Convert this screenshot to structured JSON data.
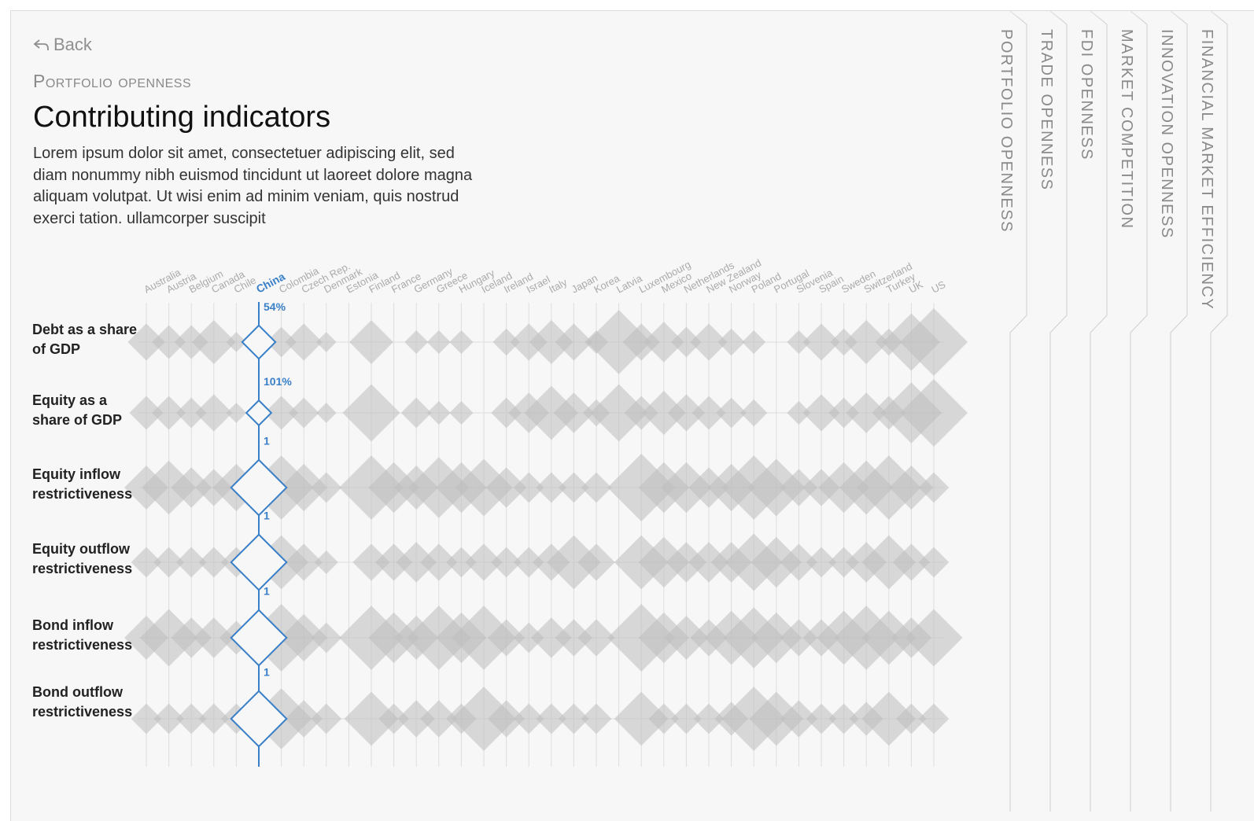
{
  "back_label": "Back",
  "section_label": "Portfolio openness",
  "page_title": "Contributing indicators",
  "page_description": "Lorem ipsum dolor sit amet, consectetuer adipiscing elit, sed diam nonummy nibh euismod tincidunt ut laoreet dolore magna aliquam volutpat. Ut wisi enim ad minim veniam, quis nostrud exerci tation. ullamcorper suscipit",
  "tabs": [
    {
      "label": "Portfolio openness"
    },
    {
      "label": "Trade openness"
    },
    {
      "label": "FDI openness"
    },
    {
      "label": "Market competition"
    },
    {
      "label": "Innovation openness"
    },
    {
      "label": "Financial market efficiency"
    }
  ],
  "colors": {
    "highlight": "#3a80c8",
    "diamond": "#bdbdbd",
    "grid": "#dedede",
    "panel": "#f7f7f7"
  },
  "chart_data": {
    "type": "scatter",
    "highlight": "China",
    "countries": [
      "Australia",
      "Austria",
      "Belgium",
      "Canada",
      "Chile",
      "China",
      "Colombia",
      "Czech Rep.",
      "Denmark",
      "Estonia",
      "Finland",
      "France",
      "Germany",
      "Greece",
      "Hungary",
      "Iceland",
      "Ireland",
      "Israel",
      "Italy",
      "Japan",
      "Korea",
      "Latvia",
      "Luxembourg",
      "Mexico",
      "Netherlands",
      "New Zealand",
      "Norway",
      "Poland",
      "Portugal",
      "Slovenia",
      "Spain",
      "Sweden",
      "Switzerland",
      "Turkey",
      "UK",
      "US"
    ],
    "indicators": [
      {
        "name": "Debt as a share of GDP",
        "highlight_label": "54%",
        "values": [
          0.55,
          0.5,
          0.5,
          0.65,
          0.3,
          0.6,
          0.45,
          0.55,
          0.3,
          0.0,
          0.65,
          0.0,
          0.35,
          0.35,
          0.35,
          0.0,
          0.4,
          0.55,
          0.65,
          0.55,
          0.35,
          0.95,
          0.55,
          0.6,
          0.45,
          0.55,
          0.4,
          0.35,
          0.0,
          0.35,
          0.55,
          0.4,
          0.65,
          0.4,
          0.85,
          1.0
        ]
      },
      {
        "name": "Equity as a share of GDP",
        "highlight_label": "101%",
        "values": [
          0.5,
          0.5,
          0.45,
          0.55,
          0.3,
          0.45,
          0.5,
          0.45,
          0.3,
          0.0,
          0.85,
          0.0,
          0.45,
          0.35,
          0.35,
          0.0,
          0.45,
          0.6,
          0.8,
          0.6,
          0.4,
          0.85,
          0.5,
          0.65,
          0.55,
          0.5,
          0.45,
          0.4,
          0.0,
          0.35,
          0.55,
          0.45,
          0.6,
          0.5,
          0.9,
          1.0
        ]
      },
      {
        "name": "Equity inflow restrictiveness",
        "highlight_label": "1",
        "values": [
          0.65,
          0.8,
          0.6,
          0.55,
          0.7,
          1.0,
          0.95,
          0.7,
          0.45,
          0.0,
          0.95,
          0.75,
          0.65,
          0.9,
          0.75,
          0.85,
          0.6,
          0.45,
          0.45,
          0.45,
          0.45,
          0.0,
          1.0,
          0.75,
          0.75,
          0.6,
          0.7,
          0.95,
          0.85,
          0.55,
          0.55,
          0.75,
          0.8,
          0.95,
          0.65,
          0.45
        ]
      },
      {
        "name": "Equity outflow restrictiveness",
        "highlight_label": "1",
        "values": [
          0.45,
          0.45,
          0.45,
          0.45,
          0.45,
          1.0,
          0.8,
          0.55,
          0.35,
          0.0,
          0.55,
          0.55,
          0.6,
          0.55,
          0.45,
          0.55,
          0.45,
          0.45,
          0.55,
          0.8,
          0.55,
          0.0,
          0.8,
          0.75,
          0.6,
          0.6,
          0.6,
          0.85,
          0.75,
          0.55,
          0.45,
          0.45,
          0.6,
          0.8,
          0.55,
          0.45
        ]
      },
      {
        "name": "Bond inflow restrictiveness",
        "highlight_label": "1",
        "values": [
          0.65,
          0.85,
          0.6,
          0.6,
          0.5,
          1.0,
          1.0,
          0.7,
          0.45,
          0.0,
          0.95,
          0.75,
          0.65,
          0.95,
          0.75,
          0.95,
          0.55,
          0.45,
          0.6,
          0.55,
          0.55,
          0.0,
          1.0,
          0.75,
          0.65,
          0.55,
          0.8,
          0.9,
          0.75,
          0.55,
          0.55,
          0.8,
          0.95,
          0.8,
          0.6,
          0.85
        ]
      },
      {
        "name": "Bond outflow restrictiveness",
        "highlight_label": "1",
        "values": [
          0.45,
          0.45,
          0.45,
          0.45,
          0.45,
          1.0,
          0.9,
          0.55,
          0.45,
          0.0,
          0.8,
          0.45,
          0.55,
          0.55,
          0.45,
          0.95,
          0.55,
          0.45,
          0.45,
          0.45,
          0.45,
          0.0,
          0.8,
          0.45,
          0.45,
          0.45,
          0.5,
          0.95,
          0.8,
          0.55,
          0.45,
          0.45,
          0.5,
          0.8,
          0.45,
          0.45
        ]
      }
    ]
  }
}
